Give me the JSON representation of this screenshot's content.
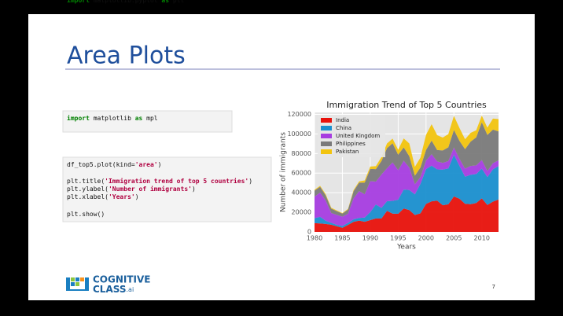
{
  "header": {
    "title": "Area Plots"
  },
  "code_blocks": [
    [
      [
        "import",
        " matplotlib ",
        "as",
        " mpl"
      ],
      [
        "import",
        " matplotlib.pyplot ",
        "as",
        " plt"
      ]
    ],
    [
      [
        "df_top5.plot(kind=",
        "'area'",
        ")"
      ],
      [
        "plt.title(",
        "'Immigration trend of top 5 countries'",
        ")"
      ],
      [
        "plt.ylabel(",
        "'Number of immigrants'",
        ")"
      ],
      [
        "plt.xlabel(",
        "'Years'",
        ")"
      ],
      [
        "plt.show()"
      ]
    ]
  ],
  "code_groups": [
    [
      0
    ],
    [
      1,
      2,
      3
    ],
    [
      4
    ]
  ],
  "chart_data": {
    "type": "stacked_area",
    "title": "Immigration Trend of Top 5 Countries",
    "xlabel": "Years",
    "ylabel": "Number of immigrants",
    "x": [
      1980,
      1981,
      1982,
      1983,
      1984,
      1985,
      1986,
      1987,
      1988,
      1989,
      1990,
      1991,
      1992,
      1993,
      1994,
      1995,
      1996,
      1997,
      1998,
      1999,
      2000,
      2001,
      2002,
      2003,
      2004,
      2005,
      2006,
      2007,
      2008,
      2009,
      2010,
      2011,
      2012,
      2013
    ],
    "series": [
      {
        "name": "India",
        "color": "#e8120c",
        "values": [
          8880,
          8670,
          8147,
          7338,
          5704,
          4211,
          7150,
          10189,
          11522,
          10343,
          12041,
          13734,
          13673,
          21496,
          18620,
          18489,
          23859,
          22268,
          17241,
          18974,
          28572,
          31223,
          31889,
          27155,
          28235,
          36210,
          33848,
          28742,
          28261,
          29456,
          34235,
          27509,
          30933,
          33087
        ]
      },
      {
        "name": "China",
        "color": "#1a8fcf",
        "values": [
          5123,
          6682,
          3308,
          1863,
          1527,
          1816,
          1960,
          2643,
          2758,
          4323,
          8076,
          14255,
          10846,
          9817,
          13128,
          14398,
          19415,
          20475,
          21049,
          30069,
          35529,
          36434,
          31961,
          36439,
          36619,
          42584,
          33518,
          27642,
          30037,
          29622,
          30391,
          28502,
          33024,
          34129
        ]
      },
      {
        "name": "United Kingdom",
        "color": "#a73de0",
        "values": [
          22045,
          24796,
          20620,
          10015,
          10170,
          9564,
          9470,
          21337,
          27359,
          23795,
          31668,
          23380,
          34123,
          33720,
          39231,
          30145,
          29322,
          22965,
          10367,
          7045,
          8840,
          11728,
          8046,
          6797,
          7533,
          7258,
          7140,
          8216,
          8979,
          8876,
          8724,
          6204,
          6195,
          5827
        ]
      },
      {
        "name": "Philippines",
        "color": "#7a7a7a",
        "values": [
          6051,
          5921,
          5249,
          4562,
          3801,
          3150,
          4166,
          7360,
          8639,
          11865,
          12509,
          12718,
          13670,
          20479,
          19532,
          15864,
          13692,
          11549,
          8735,
          9734,
          10763,
          13836,
          11707,
          12758,
          14004,
          18139,
          18400,
          19837,
          24887,
          28573,
          38617,
          36765,
          34315,
          29544
        ]
      },
      {
        "name": "Pakistan",
        "color": "#f2c40f",
        "values": [
          978,
          972,
          1201,
          900,
          668,
          514,
          691,
          1072,
          1334,
          2261,
          2470,
          3079,
          4071,
          4777,
          4666,
          4994,
          9125,
          13073,
          9068,
          9979,
          15400,
          16708,
          15110,
          13205,
          13399,
          14314,
          13127,
          10124,
          8994,
          7217,
          6811,
          7468,
          11227,
          12603
        ]
      }
    ],
    "xlim": [
      1980,
      2013
    ],
    "ylim": [
      0,
      122000
    ],
    "xticks": [
      1980,
      1985,
      1990,
      1995,
      2000,
      2005,
      2010
    ],
    "yticks": [
      0,
      20000,
      40000,
      60000,
      80000,
      100000,
      120000
    ],
    "grid": true,
    "legend": "upper left"
  },
  "footer": {
    "logo_top": "COGNITIVE",
    "logo_bottom": "CLASS",
    "logo_suffix": ".ai",
    "page_number": "7"
  }
}
